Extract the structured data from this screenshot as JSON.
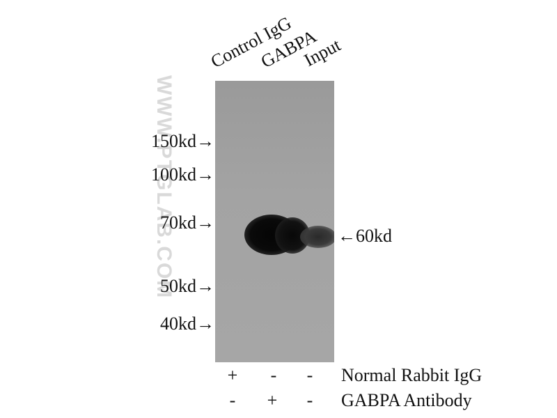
{
  "lanes": [
    "Control IgG",
    "GABPA",
    "Input"
  ],
  "markers": [
    {
      "label": "150kd→"
    },
    {
      "label": "100kd→"
    },
    {
      "label": "70kd→"
    },
    {
      "label": "50kd→"
    },
    {
      "label": "40kd→"
    }
  ],
  "band_label": "←60kd",
  "watermark": "WWW.PTGLAB.COM",
  "conditions": [
    {
      "label": "Normal Rabbit IgG",
      "signs": [
        "+",
        "-",
        "-"
      ]
    },
    {
      "label": "GABPA Antibody",
      "signs": [
        "-",
        "+",
        "-"
      ]
    }
  ]
}
